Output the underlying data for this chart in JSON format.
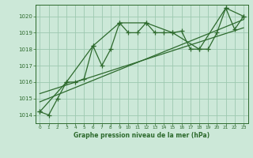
{
  "title": "Graphe pression niveau de la mer (hPa)",
  "background_color": "#cce8d8",
  "grid_color": "#9dc8b0",
  "line_color": "#2d6a2d",
  "xlim": [
    -0.5,
    23.5
  ],
  "ylim": [
    1013.5,
    1020.7
  ],
  "yticks": [
    1014,
    1015,
    1016,
    1017,
    1018,
    1019,
    1020
  ],
  "xticks": [
    0,
    1,
    2,
    3,
    4,
    5,
    6,
    7,
    8,
    9,
    10,
    11,
    12,
    13,
    14,
    15,
    16,
    17,
    18,
    19,
    20,
    21,
    22,
    23
  ],
  "hourly_x": [
    0,
    1,
    2,
    3,
    4,
    5,
    6,
    7,
    8,
    9,
    10,
    11,
    12,
    13,
    14,
    15,
    16,
    17,
    18,
    19,
    20,
    21,
    22,
    23
  ],
  "hourly_y": [
    1014.2,
    1014.0,
    1015.0,
    1016.0,
    1016.0,
    1016.2,
    1018.2,
    1017.0,
    1018.0,
    1019.6,
    1019.0,
    1019.0,
    1019.6,
    1019.0,
    1019.0,
    1019.0,
    1019.1,
    1018.0,
    1018.0,
    1018.0,
    1019.0,
    1020.5,
    1019.2,
    1020.0
  ],
  "smooth_x": [
    0,
    3,
    6,
    9,
    12,
    15,
    18,
    21,
    23
  ],
  "smooth_y": [
    1014.2,
    1016.0,
    1018.2,
    1019.6,
    1019.6,
    1019.0,
    1018.0,
    1020.5,
    1020.0
  ],
  "trend1_x": [
    0,
    23
  ],
  "trend1_y": [
    1015.3,
    1019.3
  ],
  "trend2_x": [
    0,
    23
  ],
  "trend2_y": [
    1014.8,
    1019.8
  ]
}
